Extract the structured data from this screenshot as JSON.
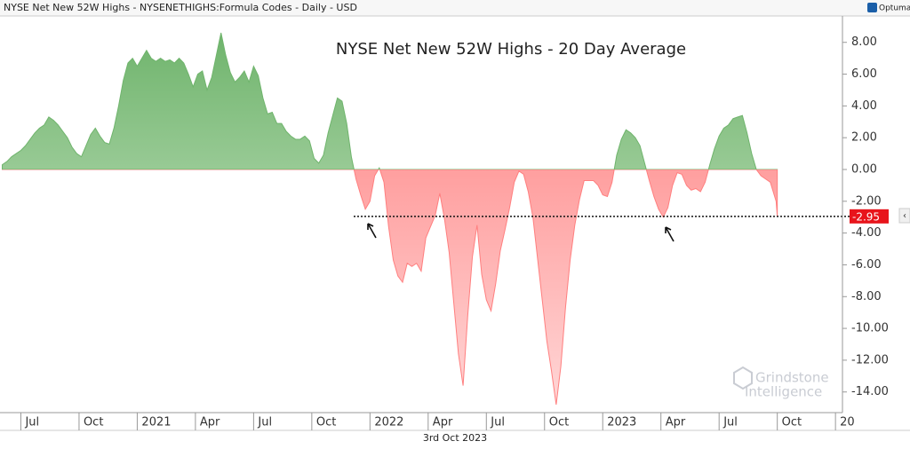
{
  "header": "NYSE Net New 52W Highs - NYSENETHIGHS:Formula Codes - Daily - USD",
  "brand": "Optuma",
  "watermark": [
    "Grindstone",
    "Intelligence"
  ],
  "cursor_date": "3rd Oct 2023",
  "chart_data": {
    "type": "area",
    "title": "NYSE Net New 52W Highs - 20 Day Average",
    "positive_color": "#6fb46c",
    "negative_color": "#ff7f7f",
    "x": [
      2020.42,
      2020.44,
      2020.46,
      2020.48,
      2020.5,
      2020.52,
      2020.54,
      2020.56,
      2020.58,
      2020.6,
      2020.62,
      2020.64,
      2020.66,
      2020.68,
      2020.7,
      2020.72,
      2020.74,
      2020.76,
      2020.78,
      2020.8,
      2020.82,
      2020.84,
      2020.86,
      2020.88,
      2020.9,
      2020.92,
      2020.94,
      2020.96,
      2020.98,
      2021,
      2021.02,
      2021.04,
      2021.06,
      2021.08,
      2021.1,
      2021.12,
      2021.14,
      2021.16,
      2021.18,
      2021.2,
      2021.22,
      2021.24,
      2021.26,
      2021.28,
      2021.3,
      2021.32,
      2021.34,
      2021.36,
      2021.38,
      2021.4,
      2021.42,
      2021.44,
      2021.46,
      2021.48,
      2021.5,
      2021.52,
      2021.54,
      2021.56,
      2021.58,
      2021.6,
      2021.62,
      2021.64,
      2021.66,
      2021.68,
      2021.7,
      2021.72,
      2021.74,
      2021.76,
      2021.78,
      2021.8,
      2021.82,
      2021.84,
      2021.86,
      2021.88,
      2021.9,
      2021.92,
      2021.94,
      2021.96,
      2021.98,
      2022,
      2022.02,
      2022.04,
      2022.06,
      2022.08,
      2022.1,
      2022.12,
      2022.14,
      2022.16,
      2022.18,
      2022.2,
      2022.22,
      2022.24,
      2022.26,
      2022.28,
      2022.3,
      2022.32,
      2022.34,
      2022.36,
      2022.38,
      2022.4,
      2022.42,
      2022.44,
      2022.46,
      2022.48,
      2022.5,
      2022.52,
      2022.54,
      2022.56,
      2022.58,
      2022.6,
      2022.62,
      2022.64,
      2022.66,
      2022.68,
      2022.7,
      2022.72,
      2022.74,
      2022.76,
      2022.78,
      2022.8,
      2022.82,
      2022.84,
      2022.86,
      2022.88,
      2022.9,
      2022.92,
      2022.94,
      2022.96,
      2022.98,
      2023,
      2023.02,
      2023.04,
      2023.06,
      2023.08,
      2023.1,
      2023.12,
      2023.14,
      2023.16,
      2023.18,
      2023.2,
      2023.22,
      2023.24,
      2023.26,
      2023.28,
      2023.3,
      2023.32,
      2023.34,
      2023.36,
      2023.38,
      2023.4,
      2023.42,
      2023.44,
      2023.46,
      2023.48,
      2023.5,
      2023.52,
      2023.54,
      2023.56,
      2023.58,
      2023.6,
      2023.62,
      2023.64,
      2023.66,
      2023.68,
      2023.7,
      2023.72,
      2023.745,
      2023.75
    ],
    "values": [
      0.3,
      0.5,
      0.8,
      1.0,
      1.2,
      1.5,
      1.9,
      2.3,
      2.6,
      2.8,
      3.3,
      3.1,
      2.8,
      2.4,
      2.0,
      1.4,
      1.0,
      0.8,
      1.5,
      2.2,
      2.6,
      2.1,
      1.7,
      1.6,
      2.6,
      4.0,
      5.6,
      6.7,
      7.0,
      6.5,
      7.0,
      7.5,
      7.0,
      6.8,
      7.0,
      6.8,
      6.9,
      6.7,
      7.0,
      6.7,
      6.0,
      5.2,
      6.0,
      6.2,
      5.0,
      5.8,
      7.2,
      8.6,
      7.2,
      6.1,
      5.5,
      5.8,
      6.2,
      5.5,
      6.5,
      5.9,
      4.5,
      3.5,
      3.6,
      2.9,
      2.9,
      2.4,
      2.1,
      1.9,
      1.9,
      2.1,
      1.8,
      0.7,
      0.4,
      0.9,
      2.3,
      3.4,
      4.5,
      4.3,
      2.9,
      0.8,
      -0.6,
      -1.6,
      -2.5,
      -2.0,
      -0.4,
      0.1,
      -0.8,
      -3.6,
      -5.7,
      -6.7,
      -7.1,
      -5.9,
      -6.1,
      -5.9,
      -6.4,
      -4.3,
      -3.6,
      -2.9,
      -1.5,
      -3.1,
      -5.2,
      -8.4,
      -11.6,
      -13.6,
      -9.2,
      -5.5,
      -3.5,
      -6.6,
      -8.2,
      -8.9,
      -7.2,
      -5.1,
      -3.8,
      -2.4,
      -0.8,
      -0.1,
      -0.3,
      -1.4,
      -3.0,
      -5.6,
      -8.2,
      -10.8,
      -12.7,
      -14.8,
      -12.4,
      -8.7,
      -5.7,
      -3.5,
      -1.9,
      -0.7,
      -0.7,
      -0.7,
      -1.0,
      -1.6,
      -1.7,
      -0.8,
      0.9,
      1.9,
      2.5,
      2.3,
      2.0,
      1.5,
      0.4,
      -0.7,
      -1.7,
      -2.5,
      -3.0,
      -2.4,
      -1.0,
      -0.2,
      -0.3,
      -1.0,
      -1.3,
      -1.2,
      -1.4,
      -0.8,
      0.3,
      1.3,
      2.1,
      2.6,
      2.8,
      3.2,
      3.3,
      3.4,
      2.3,
      1.0,
      0.0,
      -0.4,
      -0.6,
      -0.8,
      -2.0,
      -2.95
    ],
    "xlim": [
      2020.418,
      2024.03
    ],
    "ylim": [
      -15.3,
      9.66
    ],
    "xticks": [
      {
        "value": 2020.5,
        "label": "Jul"
      },
      {
        "value": 2020.75,
        "label": "Oct"
      },
      2021,
      {
        "value": 2021.25,
        "label": "Apr"
      },
      {
        "value": 2021.5,
        "label": "Jul"
      },
      {
        "value": 2021.75,
        "label": "Oct"
      },
      2022,
      {
        "value": 2022.25,
        "label": "Apr"
      },
      {
        "value": 2022.5,
        "label": "Jul"
      },
      {
        "value": 2022.75,
        "label": "Oct"
      },
      2023,
      {
        "value": 2023.25,
        "label": "Apr"
      },
      {
        "value": 2023.5,
        "label": "Jul"
      },
      {
        "value": 2023.75,
        "label": "Oct"
      },
      {
        "value": 2024,
        "label": "20"
      }
    ],
    "yticks": [
      {
        "value": 8,
        "label": "8.00"
      },
      {
        "value": 6,
        "label": "6.00"
      },
      {
        "value": 4,
        "label": "4.00"
      },
      {
        "value": 2,
        "label": "2.00"
      },
      {
        "value": 0,
        "label": "0.00"
      },
      {
        "value": -2,
        "label": "-2.00"
      },
      {
        "value": -4,
        "label": "-4.00"
      },
      {
        "value": -6,
        "label": "-6.00"
      },
      {
        "value": -8,
        "label": "-8.00"
      },
      {
        "value": -10,
        "label": "-10.00"
      },
      {
        "value": -12,
        "label": "-12.00"
      },
      {
        "value": -14,
        "label": "-14.00"
      }
    ]
  }
}
